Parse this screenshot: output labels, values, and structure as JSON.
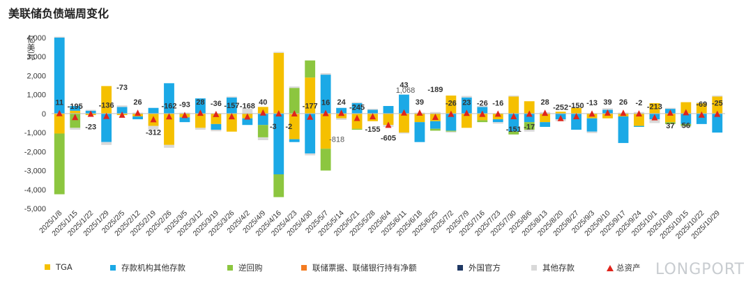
{
  "title": "美联储负债端周变化",
  "brand": "LONGPORT",
  "chart_data": {
    "type": "bar",
    "stacked": true,
    "ylabel": "亿美元",
    "ylim": [
      -5000,
      4000
    ],
    "yticks": [
      4000,
      3000,
      2000,
      1000,
      0,
      -1000,
      -2000,
      -3000,
      -4000,
      -5000
    ],
    "ytick_labels": [
      "4,000",
      "3,000",
      "2,000",
      "1,000",
      "0",
      "-1,000",
      "-2,000",
      "-3,000",
      "-4,000",
      "-5,000"
    ],
    "categories": [
      "2025/1/8",
      "2025/1/15",
      "2025/1/22",
      "2025/1/29",
      "2025/2/5",
      "2025/2/12",
      "2025/2/19",
      "2025/2/26",
      "2025/3/5",
      "2025/3/12",
      "2025/3/19",
      "2025/3/26",
      "2025/4/2",
      "2025/4/9",
      "2025/4/16",
      "2025/4/23",
      "2025/4/30",
      "2025/5/7",
      "2025/5/14",
      "2025/5/21",
      "2025/5/28",
      "2025/6/4",
      "2025/6/11",
      "2025/6/18",
      "2025/6/25",
      "2025/7/2",
      "2025/7/9",
      "2025/7/16",
      "2025/7/23",
      "2025/7/30",
      "2025/8/6",
      "2025/8/13",
      "2025/8/20",
      "2025/8/27",
      "2025/9/3",
      "2025/9/10",
      "2025/9/17",
      "2025/9/24",
      "2025/10/1",
      "2025/10/8",
      "2025/10/15",
      "2025/10/22",
      "2025/10/29"
    ],
    "series": [
      {
        "name": "TGA",
        "color": "#f5c000",
        "values": [
          -1050,
          150,
          -80,
          1450,
          -80,
          -150,
          -650,
          -1650,
          -200,
          -750,
          -550,
          -950,
          -250,
          350,
          3200,
          -1350,
          1900,
          -1850,
          -250,
          -800,
          -400,
          -600,
          -1000,
          -450,
          -400,
          950,
          -750,
          -350,
          -300,
          900,
          650,
          -450,
          100,
          300,
          -250,
          -250,
          -150,
          -650,
          550,
          -450,
          600,
          550,
          900
        ]
      },
      {
        "name": "存款机构其他存款",
        "color": "#1ba9e6",
        "values": [
          4000,
          250,
          150,
          -1500,
          350,
          -150,
          300,
          1600,
          -250,
          800,
          -300,
          850,
          -350,
          -600,
          -3200,
          -150,
          -2100,
          2050,
          300,
          550,
          200,
          400,
          1000,
          -1050,
          -400,
          -900,
          850,
          350,
          -150,
          -950,
          -450,
          -250,
          -300,
          -850,
          -700,
          200,
          -1400,
          -50,
          -300,
          250,
          -550,
          -550,
          -1000
        ]
      },
      {
        "name": "逆回购",
        "color": "#8cc63f",
        "values": [
          -3200,
          -750,
          0,
          0,
          0,
          0,
          0,
          0,
          0,
          0,
          0,
          0,
          0,
          -650,
          -1200,
          1350,
          900,
          -1150,
          0,
          -50,
          0,
          0,
          0,
          0,
          -100,
          -50,
          0,
          -100,
          0,
          -150,
          -400,
          0,
          0,
          0,
          0,
          0,
          0,
          0,
          0,
          -100,
          -100,
          0,
          0
        ]
      },
      {
        "name": "联储票据、联储银行持有净额",
        "color": "#f47b20",
        "values": [
          0,
          0,
          0,
          0,
          0,
          0,
          0,
          0,
          0,
          0,
          0,
          0,
          0,
          0,
          0,
          0,
          0,
          0,
          0,
          0,
          0,
          0,
          0,
          0,
          0,
          0,
          0,
          0,
          0,
          0,
          0,
          0,
          0,
          0,
          0,
          0,
          0,
          0,
          0,
          0,
          0,
          0,
          0
        ]
      },
      {
        "name": "外国官方",
        "color": "#1f3864",
        "values": [
          0,
          0,
          0,
          0,
          0,
          0,
          0,
          0,
          0,
          0,
          0,
          0,
          0,
          0,
          0,
          0,
          0,
          0,
          0,
          0,
          0,
          0,
          0,
          0,
          0,
          0,
          0,
          0,
          0,
          0,
          0,
          0,
          0,
          0,
          0,
          0,
          0,
          0,
          0,
          0,
          0,
          0,
          0
        ]
      },
      {
        "name": "其他存款",
        "color": "#d9d9d9",
        "values": [
          50,
          -100,
          50,
          -150,
          80,
          50,
          -200,
          -150,
          50,
          -100,
          -80,
          50,
          250,
          -150,
          50,
          80,
          -100,
          80,
          -80,
          50,
          50,
          -100,
          -50,
          50,
          80,
          -50,
          80,
          50,
          -80,
          50,
          -100,
          80,
          -100,
          80,
          -80,
          80,
          50,
          80,
          -200,
          50,
          -80,
          50,
          50
        ]
      }
    ],
    "total_series": {
      "name": "总资产",
      "color": "#e0241b",
      "values": [
        11,
        -195,
        -23,
        -136,
        -73,
        26,
        -312,
        -162,
        -93,
        28,
        -36,
        -157,
        -168,
        40,
        -3,
        -2,
        -177,
        16,
        24,
        -245,
        -155,
        -605,
        43,
        39,
        -189,
        -26,
        23,
        -26,
        -16,
        -151,
        -17,
        28,
        -252,
        -150,
        -13,
        39,
        26,
        -2,
        -213,
        37,
        56,
        -69,
        -25
      ]
    },
    "data_labels": [
      {
        "i": 0,
        "text": "11",
        "pos": "right"
      },
      {
        "i": 1,
        "text": "-195",
        "pos": "above"
      },
      {
        "i": 2,
        "text": "-23",
        "pos": "below"
      },
      {
        "i": 3,
        "text": "-136",
        "pos": "above"
      },
      {
        "i": 4,
        "text": "-73",
        "pos": "upper"
      },
      {
        "i": 5,
        "text": "26",
        "pos": "above"
      },
      {
        "i": 6,
        "text": "-312",
        "pos": "below"
      },
      {
        "i": 7,
        "text": "-162",
        "pos": "above"
      },
      {
        "i": 8,
        "text": "-93",
        "pos": "above"
      },
      {
        "i": 9,
        "text": "28",
        "pos": "above"
      },
      {
        "i": 10,
        "text": "-36",
        "pos": "above"
      },
      {
        "i": 11,
        "text": "-157",
        "pos": "above"
      },
      {
        "i": 12,
        "text": "-168",
        "pos": "above"
      },
      {
        "i": 13,
        "text": "40",
        "pos": "above"
      },
      {
        "i": 14,
        "text": "-3",
        "pos": "below-left"
      },
      {
        "i": 15,
        "text": "-2",
        "pos": "below-left"
      },
      {
        "i": 16,
        "text": "-177",
        "pos": "above"
      },
      {
        "i": 17,
        "text": "16",
        "pos": "above"
      },
      {
        "i": 18,
        "text": "24",
        "pos": "above"
      },
      {
        "i": 19,
        "text": "-245",
        "pos": "above"
      },
      {
        "i": 20,
        "text": "-155",
        "pos": "below"
      },
      {
        "i": 21,
        "text": "-605",
        "pos": "below"
      },
      {
        "i": 22,
        "text": "43",
        "pos": "upper"
      },
      {
        "i": 23,
        "text": "39",
        "pos": "above"
      },
      {
        "i": 24,
        "text": "-189",
        "pos": "upper"
      },
      {
        "i": 25,
        "text": "-26",
        "pos": "above"
      },
      {
        "i": 26,
        "text": "23",
        "pos": "above"
      },
      {
        "i": 27,
        "text": "-26",
        "pos": "above"
      },
      {
        "i": 28,
        "text": "-16",
        "pos": "above"
      },
      {
        "i": 29,
        "text": "-151",
        "pos": "below"
      },
      {
        "i": 30,
        "text": "-17",
        "pos": "below"
      },
      {
        "i": 31,
        "text": "28",
        "pos": "above"
      },
      {
        "i": 32,
        "text": "-252",
        "pos": "above"
      },
      {
        "i": 33,
        "text": "-150",
        "pos": "above"
      },
      {
        "i": 34,
        "text": "-13",
        "pos": "above"
      },
      {
        "i": 35,
        "text": "39",
        "pos": "above"
      },
      {
        "i": 36,
        "text": "26",
        "pos": "above"
      },
      {
        "i": 37,
        "text": "-2",
        "pos": "above"
      },
      {
        "i": 38,
        "text": "-213",
        "pos": "above"
      },
      {
        "i": 39,
        "text": "37",
        "pos": "below"
      },
      {
        "i": 40,
        "text": "56",
        "pos": "below"
      },
      {
        "i": 41,
        "text": "-69",
        "pos": "above"
      },
      {
        "i": 42,
        "text": "-25",
        "pos": "above"
      }
    ],
    "series_labels": [
      {
        "i": 17,
        "text": "-818",
        "color": "#555555"
      },
      {
        "i": 22,
        "text": "1,068",
        "color": "#555555"
      }
    ],
    "legend": {
      "position": "bottom"
    },
    "grid": false
  }
}
